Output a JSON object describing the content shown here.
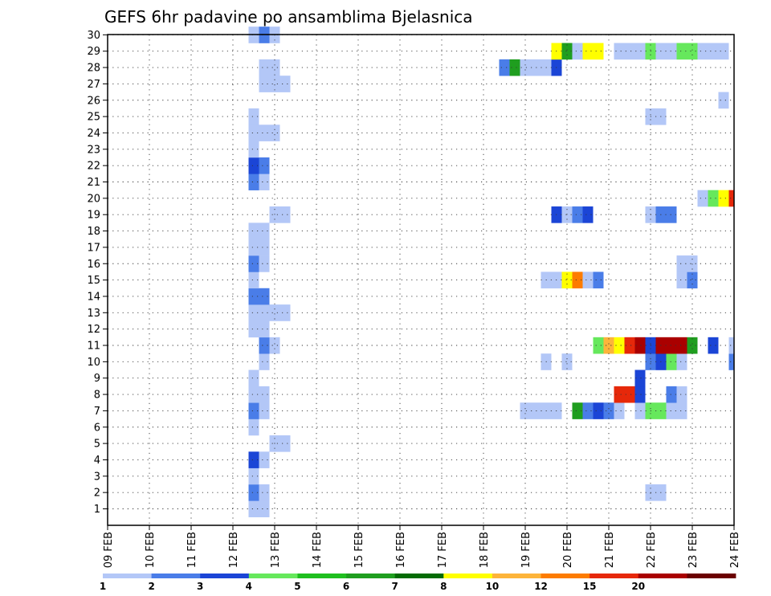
{
  "chart_data": {
    "type": "heatmap",
    "title": "GEFS 6hr padavine po ansamblima Bjelasnica",
    "xlabel": "",
    "ylabel": "",
    "x_tick_labels": [
      "09 FEB",
      "10 FEB",
      "11 FEB",
      "12 FEB",
      "13 FEB",
      "14 FEB",
      "15 FEB",
      "16 FEB",
      "17 FEB",
      "18 FEB",
      "19 FEB",
      "20 FEB",
      "21 FEB",
      "22 FEB",
      "23 FEB",
      "24 FEB"
    ],
    "x_range_days": [
      9,
      24
    ],
    "step_hours": 6,
    "members": [
      1,
      2,
      3,
      4,
      5,
      6,
      7,
      8,
      9,
      10,
      11,
      12,
      13,
      14,
      15,
      16,
      17,
      18,
      19,
      20,
      21,
      22,
      23,
      24,
      25,
      26,
      27,
      28,
      29,
      30
    ],
    "grid": "dotted",
    "legend": {
      "position": "bottom",
      "levels": [
        "1",
        "2",
        "3",
        "4",
        "5",
        "6",
        "7",
        "8",
        "10",
        "12",
        "15",
        "20"
      ],
      "colors": [
        "#b3c7f7",
        "#4a7de8",
        "#1b45d6",
        "#66e85c",
        "#1fbf1f",
        "#1f9e1f",
        "#046b04",
        "#ffff00",
        "#fdb43a",
        "#fd7c00",
        "#e6280a",
        "#aa0000",
        "#6b0000"
      ]
    },
    "cells": [
      {
        "member": 1,
        "day": 12.5,
        "level": 1
      },
      {
        "member": 1,
        "day": 12.75,
        "level": 1
      },
      {
        "member": 2,
        "day": 12.5,
        "level": 2
      },
      {
        "member": 2,
        "day": 12.75,
        "level": 1
      },
      {
        "member": 2,
        "day": 22.0,
        "level": 1
      },
      {
        "member": 2,
        "day": 22.25,
        "level": 1
      },
      {
        "member": 3,
        "day": 12.5,
        "level": 1
      },
      {
        "member": 4,
        "day": 12.5,
        "level": 3
      },
      {
        "member": 4,
        "day": 12.75,
        "level": 1
      },
      {
        "member": 5,
        "day": 13.0,
        "level": 1
      },
      {
        "member": 5,
        "day": 13.25,
        "level": 1
      },
      {
        "member": 6,
        "day": 12.5,
        "level": 1
      },
      {
        "member": 7,
        "day": 12.5,
        "level": 2
      },
      {
        "member": 7,
        "day": 12.75,
        "level": 1
      },
      {
        "member": 7,
        "day": 19.0,
        "level": 1
      },
      {
        "member": 7,
        "day": 19.25,
        "level": 1
      },
      {
        "member": 7,
        "day": 19.5,
        "level": 1
      },
      {
        "member": 7,
        "day": 19.75,
        "level": 1
      },
      {
        "member": 7,
        "day": 20.25,
        "level": 6
      },
      {
        "member": 7,
        "day": 20.5,
        "level": 2
      },
      {
        "member": 7,
        "day": 20.75,
        "level": 3
      },
      {
        "member": 7,
        "day": 21.0,
        "level": 2
      },
      {
        "member": 7,
        "day": 21.25,
        "level": 1
      },
      {
        "member": 7,
        "day": 21.75,
        "level": 1
      },
      {
        "member": 7,
        "day": 22.0,
        "level": 4
      },
      {
        "member": 7,
        "day": 22.25,
        "level": 4
      },
      {
        "member": 7,
        "day": 22.5,
        "level": 1
      },
      {
        "member": 7,
        "day": 22.75,
        "level": 1
      },
      {
        "member": 8,
        "day": 12.5,
        "level": 1
      },
      {
        "member": 8,
        "day": 12.75,
        "level": 1
      },
      {
        "member": 8,
        "day": 21.25,
        "level": 11
      },
      {
        "member": 8,
        "day": 21.5,
        "level": 11
      },
      {
        "member": 8,
        "day": 21.75,
        "level": 3
      },
      {
        "member": 8,
        "day": 22.5,
        "level": 2
      },
      {
        "member": 8,
        "day": 22.75,
        "level": 1
      },
      {
        "member": 9,
        "day": 12.5,
        "level": 1
      },
      {
        "member": 9,
        "day": 21.75,
        "level": 3
      },
      {
        "member": 10,
        "day": 12.75,
        "level": 1
      },
      {
        "member": 10,
        "day": 19.5,
        "level": 1
      },
      {
        "member": 10,
        "day": 20.0,
        "level": 1
      },
      {
        "member": 10,
        "day": 22.0,
        "level": 2
      },
      {
        "member": 10,
        "day": 22.25,
        "level": 3
      },
      {
        "member": 10,
        "day": 22.5,
        "level": 4
      },
      {
        "member": 10,
        "day": 22.75,
        "level": 1
      },
      {
        "member": 10,
        "day": 24.0,
        "level": 2
      },
      {
        "member": 11,
        "day": 12.75,
        "level": 2
      },
      {
        "member": 11,
        "day": 13.0,
        "level": 1
      },
      {
        "member": 11,
        "day": 20.75,
        "level": 4
      },
      {
        "member": 11,
        "day": 21.0,
        "level": 9
      },
      {
        "member": 11,
        "day": 21.25,
        "level": 8
      },
      {
        "member": 11,
        "day": 21.5,
        "level": 11
      },
      {
        "member": 11,
        "day": 21.75,
        "level": 12
      },
      {
        "member": 11,
        "day": 22.0,
        "level": 3
      },
      {
        "member": 11,
        "day": 22.25,
        "level": 12
      },
      {
        "member": 11,
        "day": 22.5,
        "level": 12
      },
      {
        "member": 11,
        "day": 22.75,
        "level": 12
      },
      {
        "member": 11,
        "day": 23.0,
        "level": 6
      },
      {
        "member": 11,
        "day": 23.5,
        "level": 3
      },
      {
        "member": 11,
        "day": 24.0,
        "level": 1
      },
      {
        "member": 12,
        "day": 12.5,
        "level": 1
      },
      {
        "member": 12,
        "day": 12.75,
        "level": 1
      },
      {
        "member": 13,
        "day": 12.5,
        "level": 1
      },
      {
        "member": 13,
        "day": 12.75,
        "level": 1
      },
      {
        "member": 13,
        "day": 13.0,
        "level": 1
      },
      {
        "member": 13,
        "day": 13.25,
        "level": 1
      },
      {
        "member": 14,
        "day": 12.5,
        "level": 2
      },
      {
        "member": 14,
        "day": 12.75,
        "level": 2
      },
      {
        "member": 15,
        "day": 12.5,
        "level": 1
      },
      {
        "member": 15,
        "day": 19.5,
        "level": 1
      },
      {
        "member": 15,
        "day": 19.75,
        "level": 1
      },
      {
        "member": 15,
        "day": 20.0,
        "level": 8
      },
      {
        "member": 15,
        "day": 20.25,
        "level": 10
      },
      {
        "member": 15,
        "day": 20.5,
        "level": 1
      },
      {
        "member": 15,
        "day": 20.75,
        "level": 2
      },
      {
        "member": 15,
        "day": 22.75,
        "level": 1
      },
      {
        "member": 15,
        "day": 23.0,
        "level": 2
      },
      {
        "member": 16,
        "day": 12.5,
        "level": 2
      },
      {
        "member": 16,
        "day": 12.75,
        "level": 1
      },
      {
        "member": 16,
        "day": 22.75,
        "level": 1
      },
      {
        "member": 16,
        "day": 23.0,
        "level": 1
      },
      {
        "member": 17,
        "day": 12.5,
        "level": 1
      },
      {
        "member": 17,
        "day": 12.75,
        "level": 1
      },
      {
        "member": 18,
        "day": 12.5,
        "level": 1
      },
      {
        "member": 18,
        "day": 12.75,
        "level": 1
      },
      {
        "member": 19,
        "day": 13.0,
        "level": 1
      },
      {
        "member": 19,
        "day": 13.25,
        "level": 1
      },
      {
        "member": 19,
        "day": 19.75,
        "level": 3
      },
      {
        "member": 19,
        "day": 20.0,
        "level": 1
      },
      {
        "member": 19,
        "day": 20.25,
        "level": 2
      },
      {
        "member": 19,
        "day": 20.5,
        "level": 3
      },
      {
        "member": 19,
        "day": 22.0,
        "level": 1
      },
      {
        "member": 19,
        "day": 22.25,
        "level": 2
      },
      {
        "member": 19,
        "day": 22.5,
        "level": 2
      },
      {
        "member": 20,
        "day": 23.25,
        "level": 1
      },
      {
        "member": 20,
        "day": 23.5,
        "level": 4
      },
      {
        "member": 20,
        "day": 23.75,
        "level": 8
      },
      {
        "member": 20,
        "day": 24.0,
        "level": 11
      },
      {
        "member": 21,
        "day": 12.5,
        "level": 2
      },
      {
        "member": 21,
        "day": 12.75,
        "level": 1
      },
      {
        "member": 22,
        "day": 12.5,
        "level": 3
      },
      {
        "member": 22,
        "day": 12.75,
        "level": 2
      },
      {
        "member": 23,
        "day": 12.5,
        "level": 1
      },
      {
        "member": 24,
        "day": 12.5,
        "level": 1
      },
      {
        "member": 24,
        "day": 12.75,
        "level": 1
      },
      {
        "member": 24,
        "day": 13.0,
        "level": 1
      },
      {
        "member": 25,
        "day": 12.5,
        "level": 1
      },
      {
        "member": 25,
        "day": 22.0,
        "level": 1
      },
      {
        "member": 25,
        "day": 22.25,
        "level": 1
      },
      {
        "member": 26,
        "day": 23.75,
        "level": 1
      },
      {
        "member": 27,
        "day": 12.75,
        "level": 1
      },
      {
        "member": 27,
        "day": 13.0,
        "level": 1
      },
      {
        "member": 27,
        "day": 13.25,
        "level": 1
      },
      {
        "member": 28,
        "day": 12.75,
        "level": 1
      },
      {
        "member": 28,
        "day": 13.0,
        "level": 1
      },
      {
        "member": 28,
        "day": 18.5,
        "level": 2
      },
      {
        "member": 28,
        "day": 18.75,
        "level": 6
      },
      {
        "member": 28,
        "day": 19.0,
        "level": 1
      },
      {
        "member": 28,
        "day": 19.25,
        "level": 1
      },
      {
        "member": 28,
        "day": 19.5,
        "level": 1
      },
      {
        "member": 28,
        "day": 19.75,
        "level": 3
      },
      {
        "member": 29,
        "day": 19.75,
        "level": 8
      },
      {
        "member": 29,
        "day": 20.0,
        "level": 6
      },
      {
        "member": 29,
        "day": 20.25,
        "level": 1
      },
      {
        "member": 29,
        "day": 20.5,
        "level": 8
      },
      {
        "member": 29,
        "day": 20.75,
        "level": 8
      },
      {
        "member": 29,
        "day": 21.25,
        "level": 1
      },
      {
        "member": 29,
        "day": 21.5,
        "level": 1
      },
      {
        "member": 29,
        "day": 21.75,
        "level": 1
      },
      {
        "member": 29,
        "day": 22.0,
        "level": 4
      },
      {
        "member": 29,
        "day": 22.25,
        "level": 1
      },
      {
        "member": 29,
        "day": 22.5,
        "level": 1
      },
      {
        "member": 29,
        "day": 22.75,
        "level": 4
      },
      {
        "member": 29,
        "day": 23.0,
        "level": 4
      },
      {
        "member": 29,
        "day": 23.25,
        "level": 1
      },
      {
        "member": 29,
        "day": 23.5,
        "level": 1
      },
      {
        "member": 29,
        "day": 23.75,
        "level": 1
      },
      {
        "member": 30,
        "day": 12.5,
        "level": 1
      },
      {
        "member": 30,
        "day": 12.75,
        "level": 2
      },
      {
        "member": 30,
        "day": 13.0,
        "level": 1
      }
    ]
  }
}
